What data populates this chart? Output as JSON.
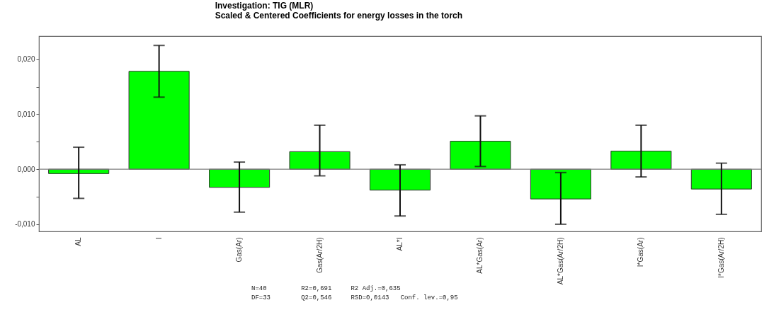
{
  "chart_data": {
    "type": "bar",
    "title": "Investigation: TIG (MLR)",
    "subtitle": "Scaled & Centered Coefficients for energy losses in the torch",
    "categories": [
      "AL",
      "I",
      "Gas(Ar)",
      "Gas(Ar/2H)",
      "AL*I",
      "AL*Gas(Ar)",
      "AL*Gas(Ar/2H)",
      "I*Gas(Ar)",
      "I*Gas(Ar/2H)"
    ],
    "values": [
      -0.0008,
      0.0178,
      -0.0033,
      0.0032,
      -0.0038,
      0.0051,
      -0.0054,
      0.0033,
      -0.0036
    ],
    "errors": [
      [
        -0.0053,
        0.004
      ],
      [
        0.0131,
        0.0225
      ],
      [
        -0.0078,
        0.0013
      ],
      [
        -0.0012,
        0.008
      ],
      [
        -0.0085,
        0.0008
      ],
      [
        0.0005,
        0.0097
      ],
      [
        -0.01,
        -0.0006
      ],
      [
        -0.0014,
        0.008
      ],
      [
        -0.0082,
        0.0011
      ]
    ],
    "color": "#00ff00",
    "ylim": [
      -0.0113,
      0.0242
    ],
    "yticks": [
      {
        "value": -0.01,
        "label": "-0,010"
      },
      {
        "value": -0.005,
        "label": null
      },
      {
        "value": 0,
        "label": "0,000"
      },
      {
        "value": 0.005,
        "label": null
      },
      {
        "value": 0.01,
        "label": "0,010"
      },
      {
        "value": 0.015,
        "label": null
      },
      {
        "value": 0.02,
        "label": "0,020"
      }
    ],
    "ref_lines": [
      {
        "axis": "y",
        "value": 0,
        "color": "#808080"
      }
    ],
    "annotations": [
      "N=40         R2=0,691     R2 Adj.=0,635",
      "DF=33        Q2=0,546     RSD=0,0143   Conf. lev.=0,95"
    ],
    "grid": false
  }
}
